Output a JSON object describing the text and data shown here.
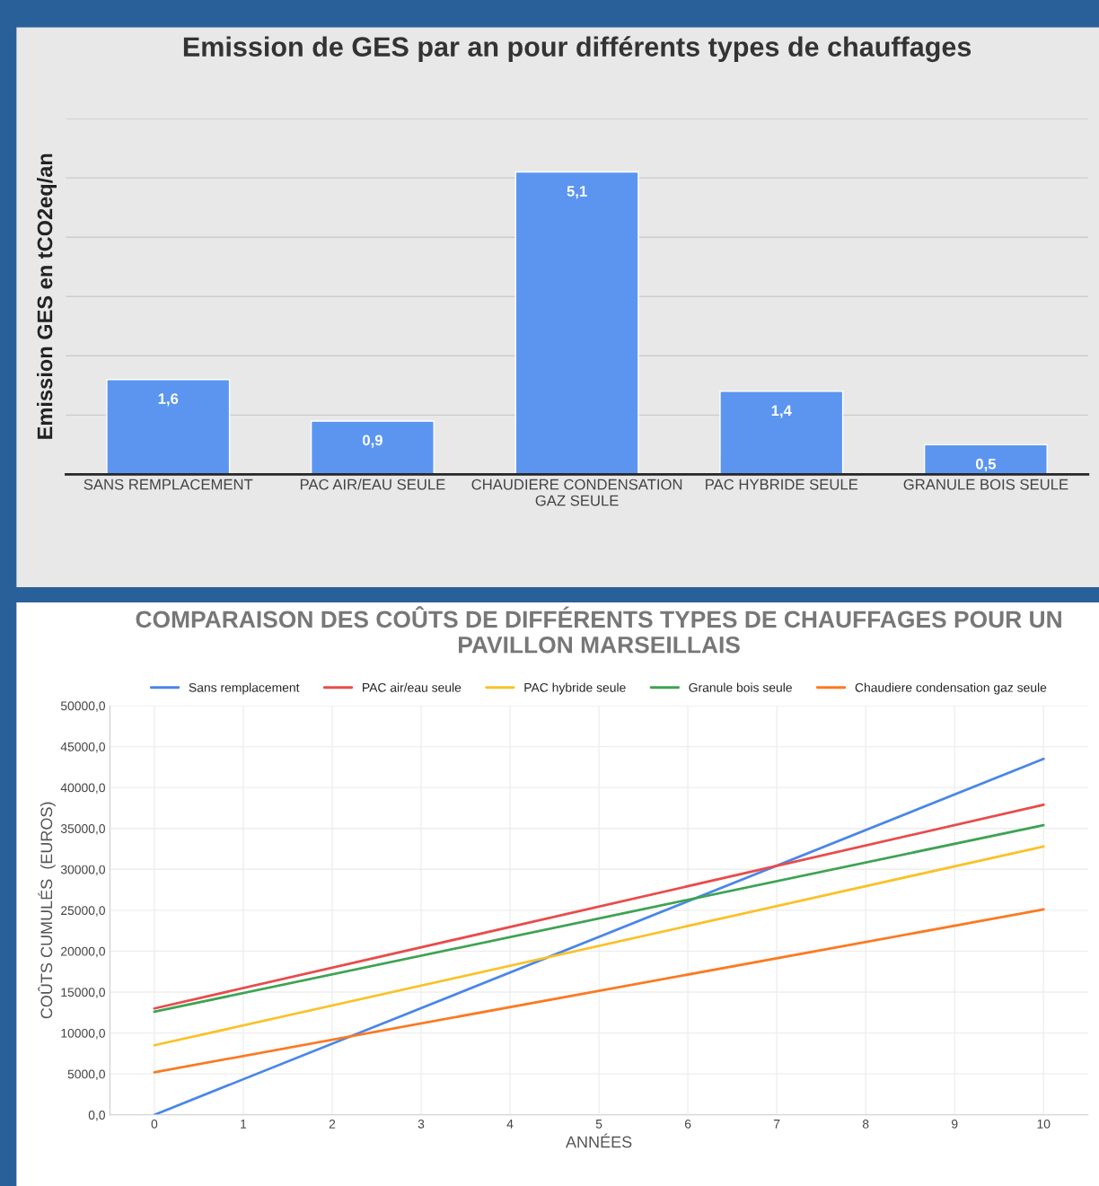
{
  "chart_data": [
    {
      "type": "bar",
      "title": "Emission de GES par an pour différents types de chauffages",
      "ylabel": "Emission GES en tCO2eq/an",
      "categories": [
        "SANS REMPLACEMENT",
        "PAC AIR/EAU SEULE",
        "CHAUDIERE CONDENSATION GAZ SEULE",
        "PAC HYBRIDE SEULE",
        "GRANULE BOIS SEULE"
      ],
      "values": [
        1.6,
        0.9,
        5.1,
        1.4,
        0.5
      ],
      "color": "#5b95f0",
      "value_labels": [
        "1,6",
        "0,9",
        "5,1",
        "1,4",
        "0,5"
      ],
      "ylim": [
        0,
        6
      ],
      "yticks": [
        {
          "value": 1,
          "label": null
        },
        {
          "value": 2,
          "label": null
        },
        {
          "value": 3,
          "label": null
        },
        {
          "value": 4,
          "label": null
        },
        {
          "value": 5,
          "label": null
        },
        {
          "value": 6,
          "label": null
        }
      ],
      "grid": "y",
      "tick_labels": "x"
    },
    {
      "type": "line",
      "title": "COMPARAISON DES COÛTS DE DIFFÉRENTS TYPES DE CHAUFFAGES POUR UN PAVILLON MARSEILLAIS",
      "xlabel": "ANNÉES",
      "ylabel": "COÛTS CUMULÉS  (EUROS)",
      "x": [
        0,
        10
      ],
      "series": [
        {
          "name": "Sans remplacement",
          "color": "#4a86e8",
          "values": [
            0,
            43500
          ]
        },
        {
          "name": "PAC air/eau seule",
          "color": "#e84c4c",
          "values": [
            13000,
            37900
          ]
        },
        {
          "name": "PAC hybride seule",
          "color": "#f9c229",
          "values": [
            8500,
            32800
          ]
        },
        {
          "name": "Granule bois seule",
          "color": "#3ea353",
          "values": [
            12600,
            35400
          ]
        },
        {
          "name": "Chaudiere condensation gaz seule",
          "color": "#fb7a22",
          "values": [
            5200,
            25100
          ]
        }
      ],
      "xlim": [
        -0.5,
        10.5
      ],
      "xticks": [
        0,
        1,
        2,
        3,
        4,
        5,
        6,
        7,
        8,
        9,
        10
      ],
      "ylim": [
        0,
        50000
      ],
      "yticks": [
        {
          "value": 0,
          "label": "0,0"
        },
        {
          "value": 5000,
          "label": "5000,0"
        },
        {
          "value": 10000,
          "label": "10000,0"
        },
        {
          "value": 15000,
          "label": "15000,0"
        },
        {
          "value": 20000,
          "label": "20000,0"
        },
        {
          "value": 25000,
          "label": "25000,0"
        },
        {
          "value": 30000,
          "label": "30000,0"
        },
        {
          "value": 35000,
          "label": "35000,0"
        },
        {
          "value": 40000,
          "label": "40000,0"
        },
        {
          "value": 45000,
          "label": "45000,0"
        },
        {
          "value": 50000,
          "label": "50000,0"
        }
      ],
      "grid": true,
      "legend": "top",
      "marker": "none",
      "line_style": "solid"
    }
  ]
}
